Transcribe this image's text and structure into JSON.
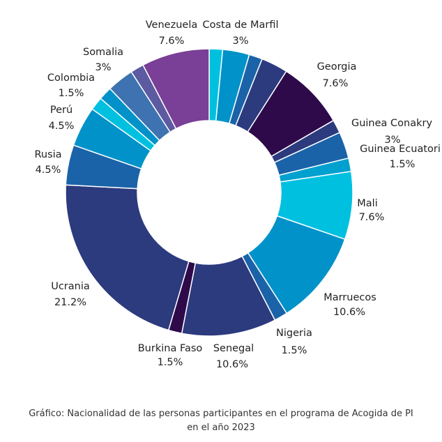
{
  "chart_data": {
    "type": "pie",
    "variant": "donut",
    "slices": [
      {
        "label": "Costa de Marfil",
        "value": 3,
        "value_text": "3%",
        "color": "#0092c8"
      },
      {
        "label": "Georgia",
        "value": 7.6,
        "value_text": "7.6%",
        "color": "#2e0a4b"
      },
      {
        "label": "Guinea Conakry",
        "value": 3,
        "value_text": "3%",
        "color": "#2c3a7e"
      },
      {
        "label": "Guinea Ecuatori",
        "value": 1.5,
        "value_text": "1.5%",
        "color": "#00a0cf"
      },
      {
        "label": "Mali",
        "value": 7.6,
        "value_text": "7.6%",
        "color": "#00c0e0"
      },
      {
        "label": "Marruecos",
        "value": 10.6,
        "value_text": "10.6%",
        "color": "#0092c8"
      },
      {
        "label": "Nigeria",
        "value": 1.5,
        "value_text": "1.5%",
        "color": "#1b63a8"
      },
      {
        "label": "Senegal",
        "value": 10.6,
        "value_text": "10.6%",
        "color": "#2c3a7e"
      },
      {
        "label": "Burkina Faso",
        "value": 1.5,
        "value_text": "1.5%",
        "color": "#2e0a4b"
      },
      {
        "label": "Ucrania",
        "value": 21.2,
        "value_text": "21.2%",
        "color": "#2c3a7e"
      },
      {
        "label": "Rusia",
        "value": 4.5,
        "value_text": "4.5%",
        "color": "#1b63a8"
      },
      {
        "label": "Perú",
        "value": 4.5,
        "value_text": "4.5%",
        "color": "#0092c8"
      },
      {
        "label": "Colombia",
        "value": 1.5,
        "value_text": "1.5%",
        "color": "#00c0e0"
      },
      {
        "label": "Somalia",
        "value": 3,
        "value_text": "3%",
        "color": "#3f72b0"
      },
      {
        "label": "Venezuela",
        "value": 7.6,
        "value_text": "7.6%",
        "color": "#7a3f96"
      }
    ],
    "sub_slices": [
      {
        "value": 1.5,
        "color": "#00c0e0"
      },
      {
        "value": 3,
        "color": "#0092c8"
      },
      {
        "value": 1.5,
        "color": "#1b63a8"
      },
      {
        "value": 3,
        "color": "#2c3a7e"
      },
      {
        "value": 7.6,
        "color": "#2e0a4b"
      },
      {
        "value": 1.5,
        "color": "#2c3a7e"
      },
      {
        "value": 3,
        "color": "#1b63a8"
      },
      {
        "value": 1.5,
        "color": "#00a0cf"
      },
      {
        "value": 7.6,
        "color": "#00c0e0"
      },
      {
        "value": 10.6,
        "color": "#0092c8"
      },
      {
        "value": 1.5,
        "color": "#1b63a8"
      },
      {
        "value": 10.6,
        "color": "#2c3a7e"
      },
      {
        "value": 1.5,
        "color": "#2e0a4b"
      },
      {
        "value": 21.2,
        "color": "#2c3a7e"
      },
      {
        "value": 4.5,
        "color": "#1b63a8"
      },
      {
        "value": 4.5,
        "color": "#0092c8"
      },
      {
        "value": 1.5,
        "color": "#00c0e0"
      },
      {
        "value": 1.5,
        "color": "#0092c8"
      },
      {
        "value": 3,
        "color": "#3f72b0"
      },
      {
        "value": 1.5,
        "color": "#5c5aa0"
      },
      {
        "value": 7.6,
        "color": "#7a3f96"
      }
    ],
    "caption_lines": [
      "Gráfico: Nacionalidad de las personas participantes en el programa de Acogida de PI",
      "en el año 2023"
    ]
  }
}
